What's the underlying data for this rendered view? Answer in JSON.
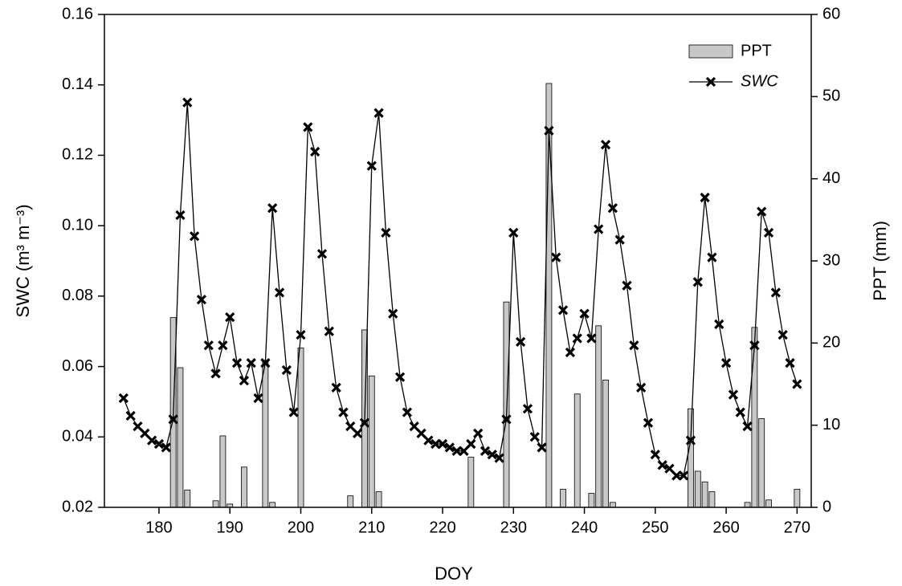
{
  "chart_data": {
    "type": "bar-line",
    "xlabel": "DOY",
    "ylabel": "SWC (m³ m⁻³)",
    "y2label": "PPT (mm)",
    "xlim": [
      172.3,
      272
    ],
    "xticks": [
      180,
      190,
      200,
      210,
      220,
      230,
      240,
      250,
      260,
      270
    ],
    "ylim": [
      0.02,
      0.16
    ],
    "yticks": [
      0.02,
      0.04,
      0.06,
      0.08,
      {
        "value": 0.1,
        "label": "0.10"
      },
      0.12,
      0.14,
      0.16
    ],
    "y2lim": [
      0,
      60
    ],
    "y2ticks": [
      0,
      10,
      20,
      30,
      40,
      50,
      60
    ],
    "legend": "upper right",
    "series": [
      {
        "name": "PPT",
        "kind": "bar",
        "axis": "y2",
        "color": "#c8c8c8",
        "x": [
          182,
          183,
          184,
          188,
          189,
          190,
          192,
          195,
          196,
          200,
          207,
          209,
          210,
          211,
          224,
          229,
          235,
          237,
          239,
          241,
          242,
          243,
          244,
          255,
          256,
          257,
          258,
          263,
          264,
          265,
          266,
          270
        ],
        "values": [
          23.1,
          17.0,
          2.1,
          0.8,
          8.7,
          0.4,
          4.9,
          17.9,
          0.6,
          19.4,
          1.4,
          21.6,
          16.0,
          1.9,
          6.1,
          25.0,
          51.6,
          2.2,
          13.8,
          1.7,
          22.1,
          15.5,
          0.6,
          12.0,
          4.4,
          3.1,
          1.9,
          0.6,
          21.9,
          10.8,
          0.9,
          2.2
        ]
      },
      {
        "name": "SWC",
        "kind": "line",
        "axis": "y",
        "color": "#000000",
        "x": [
          175,
          176,
          177,
          178,
          179,
          180,
          181,
          182,
          183,
          184,
          185,
          186,
          187,
          188,
          189,
          190,
          191,
          192,
          193,
          194,
          195,
          196,
          197,
          198,
          199,
          200,
          201,
          202,
          203,
          204,
          205,
          206,
          207,
          208,
          209,
          210,
          211,
          212,
          213,
          214,
          215,
          216,
          217,
          218,
          219,
          220,
          221,
          222,
          223,
          224,
          225,
          226,
          227,
          228,
          229,
          230,
          231,
          232,
          233,
          234,
          235,
          236,
          237,
          238,
          239,
          240,
          241,
          242,
          243,
          244,
          245,
          246,
          247,
          248,
          249,
          250,
          251,
          252,
          253,
          254,
          255,
          256,
          257,
          258,
          259,
          260,
          261,
          262,
          263,
          264,
          265,
          266,
          267,
          268,
          269,
          270
        ],
        "values": [
          0.051,
          0.046,
          0.043,
          0.041,
          0.039,
          0.038,
          0.037,
          0.045,
          0.103,
          0.135,
          0.097,
          0.079,
          0.066,
          0.058,
          0.066,
          0.074,
          0.061,
          0.056,
          0.061,
          0.051,
          0.061,
          0.105,
          0.081,
          0.059,
          0.047,
          0.069,
          0.128,
          0.121,
          0.092,
          0.07,
          0.054,
          0.047,
          0.043,
          0.041,
          0.044,
          0.117,
          0.132,
          0.098,
          0.075,
          0.057,
          0.047,
          0.043,
          0.041,
          0.039,
          0.038,
          0.038,
          0.037,
          0.036,
          0.036,
          0.038,
          0.041,
          0.036,
          0.035,
          0.034,
          0.045,
          0.098,
          0.067,
          0.048,
          0.04,
          0.037,
          0.127,
          0.091,
          0.076,
          0.064,
          0.068,
          0.075,
          0.068,
          0.099,
          0.123,
          0.105,
          0.096,
          0.083,
          0.066,
          0.054,
          0.044,
          0.035,
          0.032,
          0.031,
          0.029,
          0.029,
          0.039,
          0.084,
          0.108,
          0.091,
          0.072,
          0.061,
          0.052,
          0.047,
          0.043,
          0.066,
          0.104,
          0.098,
          0.081,
          0.069,
          0.061,
          0.055
        ]
      }
    ]
  }
}
